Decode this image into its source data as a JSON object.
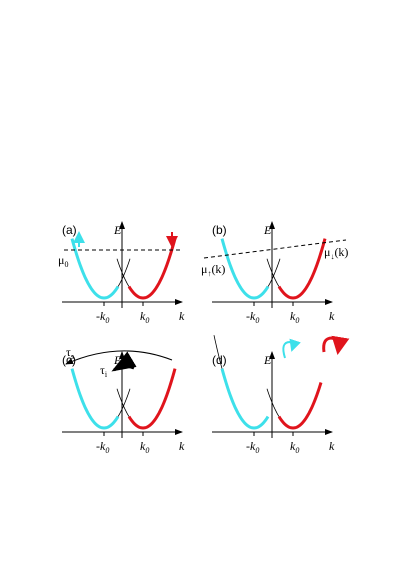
{
  "panels": [
    {
      "label": "(a)",
      "energy_axis": "E",
      "momentum_axis": "k",
      "minus_k0": {
        "main": "-k",
        "sub": "0"
      },
      "k0": {
        "main": "k",
        "sub": "0"
      },
      "annotations": [
        {
          "main": "μ",
          "sub": "0"
        }
      ]
    },
    {
      "label": "(b)",
      "energy_axis": "E",
      "momentum_axis": "k",
      "minus_k0": {
        "main": "-k",
        "sub": "0"
      },
      "k0": {
        "main": "k",
        "sub": "0"
      },
      "annotations": [
        {
          "main": "μ",
          "sub": "↑",
          "tail": "(k)"
        },
        {
          "main": "μ",
          "sub": "↓",
          "tail": "(k)"
        }
      ]
    },
    {
      "label": "(c)",
      "energy_axis": "E",
      "momentum_axis": "k",
      "minus_k0": {
        "main": "-k",
        "sub": "0"
      },
      "k0": {
        "main": "k",
        "sub": "0"
      },
      "annotations": [
        {
          "main": "τ",
          "sub": "s"
        },
        {
          "main": "τ",
          "sub": "i"
        }
      ]
    },
    {
      "label": "(d)",
      "energy_axis": "E",
      "momentum_axis": "k",
      "minus_k0": {
        "main": "-k",
        "sub": "0"
      },
      "k0": {
        "main": "k",
        "sub": "0"
      },
      "annotations": []
    }
  ]
}
